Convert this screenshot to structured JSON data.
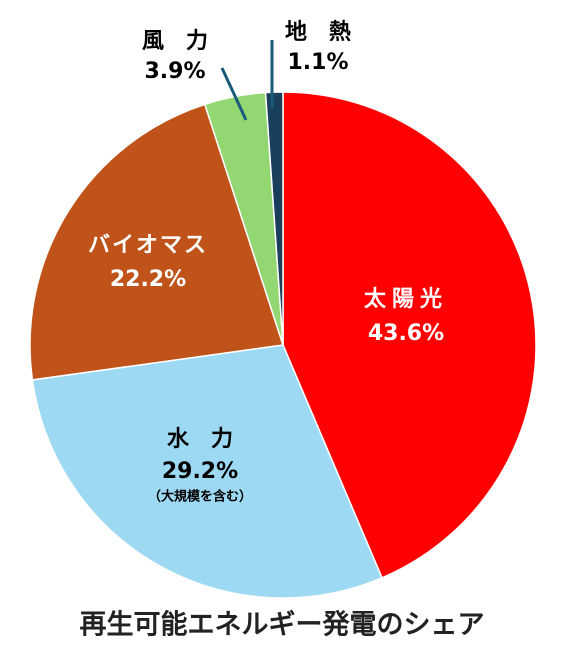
{
  "chart_data": {
    "type": "pie",
    "title": "再生可能エネルギー発電のシェア",
    "categories": [
      "太陽光",
      "水　力",
      "バイオマス",
      "風　力",
      "地　熱"
    ],
    "values": [
      43.6,
      29.2,
      22.2,
      3.9,
      1.1
    ],
    "value_labels": [
      "43.6%",
      "29.2%",
      "22.2%",
      "3.9%",
      "1.1%"
    ],
    "colors": [
      "#ff0000",
      "#9dd9f3",
      "#c0531a",
      "#92d771",
      "#1a3f5c"
    ],
    "annotations": [
      "（大規模を含む）"
    ]
  }
}
